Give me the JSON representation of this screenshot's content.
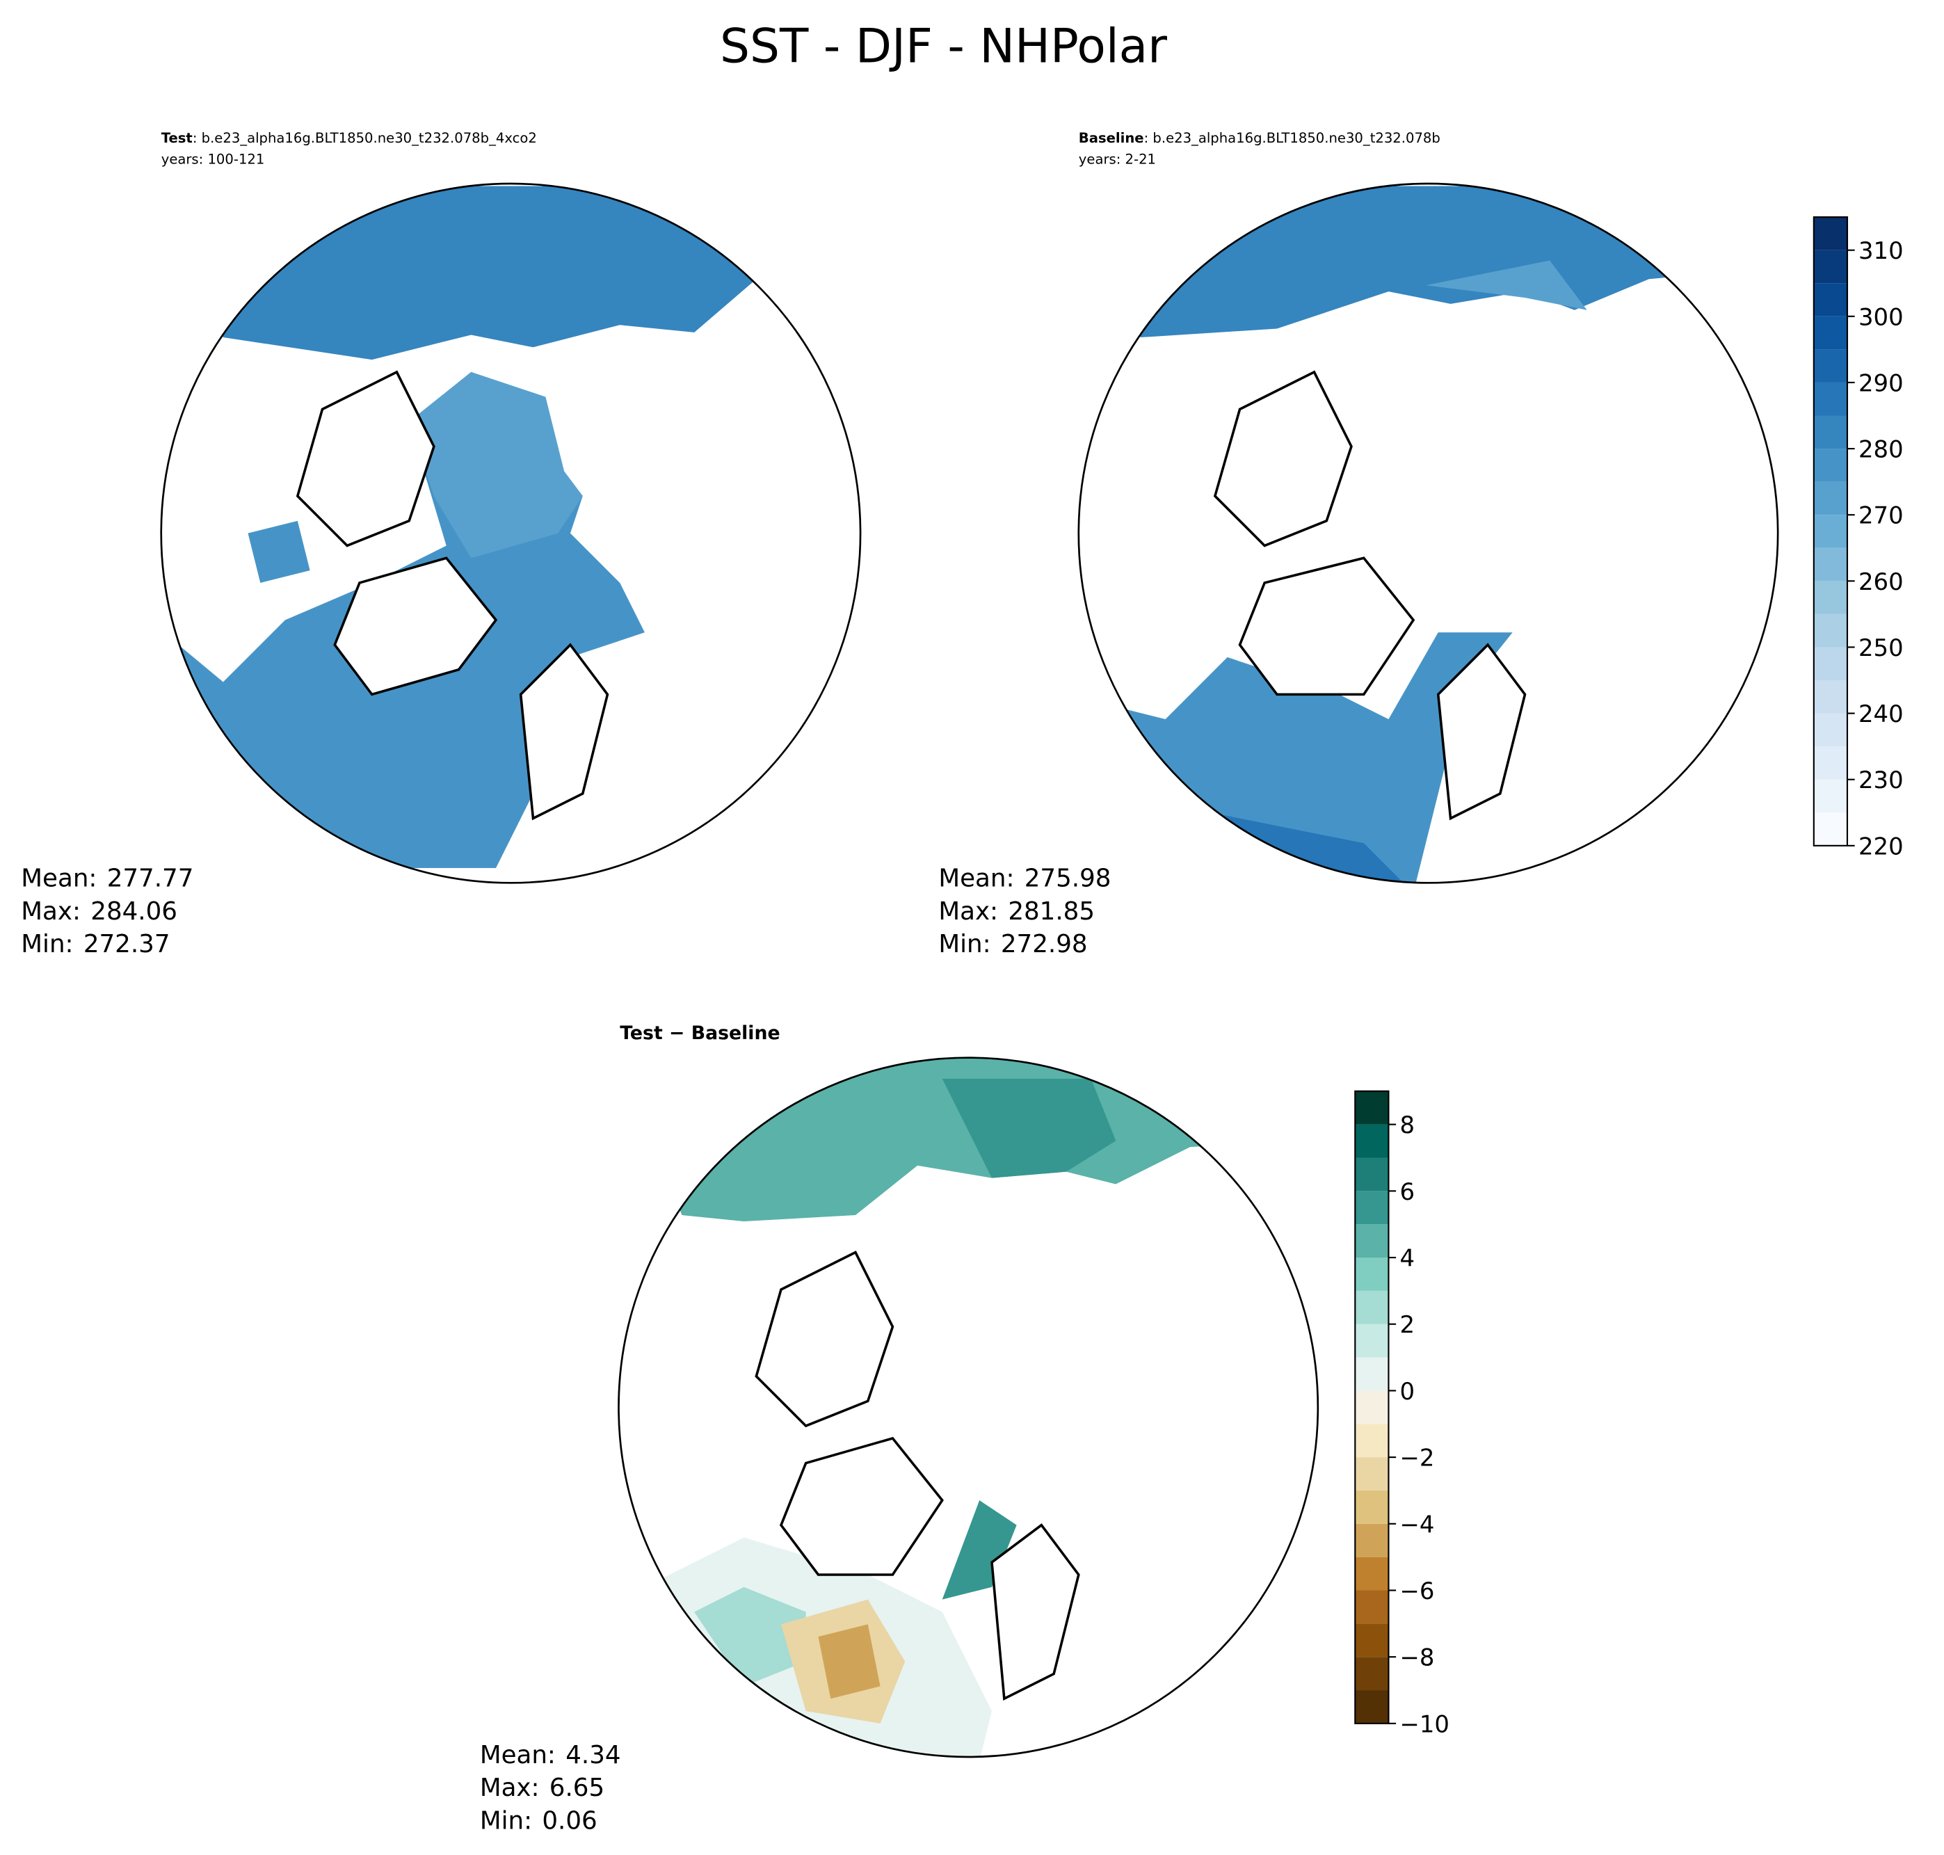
{
  "title": "SST - DJF - NHPolar",
  "panels": [
    {
      "name": "Test",
      "case": ": b.e23_alpha16g.BLT1850.ne30_t232.078b_4xco2",
      "years": "years: 100-121",
      "stats": [
        {
          "label": "Mean:",
          "value": 277.77
        },
        {
          "label": "Max:",
          "value": 284.06
        },
        {
          "label": "Min:",
          "value": 272.37
        }
      ]
    },
    {
      "name": "Baseline",
      "case": ": b.e23_alpha16g.BLT1850.ne30_t232.078b",
      "years": "years: 2-21",
      "stats": [
        {
          "label": "Mean:",
          "value": 275.98
        },
        {
          "label": "Max:",
          "value": 281.85
        },
        {
          "label": "Min:",
          "value": 272.98
        }
      ]
    },
    {
      "name": "Test − Baseline",
      "stats": [
        {
          "label": "Mean:",
          "value": 4.34
        },
        {
          "label": "Max:",
          "value": 6.65
        },
        {
          "label": "Min:",
          "value": 0.06
        }
      ]
    }
  ],
  "colorbars": [
    {
      "clim": [
        220,
        315
      ],
      "ticks": [
        220,
        230,
        240,
        250,
        260,
        270,
        280,
        290,
        300,
        310
      ],
      "colors": [
        "#f7fbff",
        "#ebf3fb",
        "#e0ecf8",
        "#d5e5f4",
        "#cadef0",
        "#bcd7eb",
        "#abd0e6",
        "#97c6df",
        "#82badb",
        "#6aaed6",
        "#58a1cf",
        "#4694c7",
        "#3585bf",
        "#2676b8",
        "#1966ad",
        "#0e58a2",
        "#084990",
        "#083b7c",
        "#08306b"
      ]
    },
    {
      "clim": [
        -10,
        9
      ],
      "ticks": [
        {
          "value": -10,
          "label": "−10"
        },
        {
          "value": -8,
          "label": "−8"
        },
        {
          "value": -6,
          "label": "−6"
        },
        {
          "value": -4,
          "label": "−4"
        },
        {
          "value": -2,
          "label": "−2"
        },
        0,
        2,
        4,
        6,
        8
      ],
      "colors": [
        "#543005",
        "#6f4108",
        "#8c510a",
        "#a8671c",
        "#bf812d",
        "#d0a458",
        "#dfc27d",
        "#ead5a5",
        "#f6e8c3",
        "#f5f0e2",
        "#e6f3f1",
        "#c7eae5",
        "#a5dcd3",
        "#80cdc1",
        "#5ab2a8",
        "#35978f",
        "#1d7f77",
        "#01665e",
        "#003c30"
      ]
    }
  ]
}
